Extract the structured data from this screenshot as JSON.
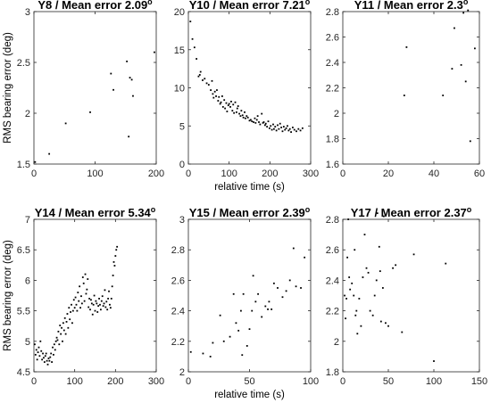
{
  "figure": {
    "ylabel": "RMS bearing error (deg)",
    "xlabel": "relative time (s)"
  },
  "chart_data": [
    {
      "type": "scatter",
      "title": "Y8 / Mean error 2.09",
      "title_suffix": "o",
      "xlabel": "",
      "ylabel": "RMS bearing error (deg)",
      "xlim": [
        0,
        200
      ],
      "ylim": [
        1.5,
        3
      ],
      "xticks": [
        0,
        100,
        200
      ],
      "yticks": [
        1.5,
        2,
        2.5,
        3
      ],
      "grid": false,
      "points": [
        [
          2,
          1.52
        ],
        [
          25,
          1.6
        ],
        [
          52,
          1.9
        ],
        [
          92,
          2.01
        ],
        [
          126,
          2.39
        ],
        [
          130,
          2.23
        ],
        [
          152,
          2.51
        ],
        [
          155,
          1.77
        ],
        [
          157,
          2.35
        ],
        [
          160,
          2.33
        ],
        [
          162,
          2.17
        ],
        [
          197,
          2.6
        ]
      ]
    },
    {
      "type": "scatter",
      "title": "Y10 / Mean error 7.21",
      "title_suffix": "o",
      "xlabel": "relative time (s)",
      "ylabel": "",
      "xlim": [
        0,
        300
      ],
      "ylim": [
        0,
        20
      ],
      "xticks": [
        0,
        100,
        200,
        300
      ],
      "yticks": [
        0,
        5,
        10,
        15,
        20
      ],
      "grid": false,
      "points": [
        [
          5,
          18.7
        ],
        [
          10,
          16.4
        ],
        [
          15,
          15.3
        ],
        [
          20,
          13.8
        ],
        [
          25,
          11.5
        ],
        [
          28,
          11.7
        ],
        [
          30,
          12.1
        ],
        [
          35,
          11
        ],
        [
          40,
          11.2
        ],
        [
          45,
          10.6
        ],
        [
          50,
          10.4
        ],
        [
          55,
          9.7
        ],
        [
          58,
          10.9
        ],
        [
          60,
          9.2
        ],
        [
          62,
          8.7
        ],
        [
          65,
          9.5
        ],
        [
          68,
          8.9
        ],
        [
          70,
          9.7
        ],
        [
          73,
          8.3
        ],
        [
          75,
          8.8
        ],
        [
          78,
          7.9
        ],
        [
          80,
          8.1
        ],
        [
          83,
          8.9
        ],
        [
          85,
          7.5
        ],
        [
          88,
          8.4
        ],
        [
          90,
          7.3
        ],
        [
          93,
          8
        ],
        [
          95,
          6.9
        ],
        [
          98,
          7.7
        ],
        [
          100,
          7.9
        ],
        [
          103,
          7.5
        ],
        [
          105,
          8.2
        ],
        [
          108,
          7
        ],
        [
          110,
          7.8
        ],
        [
          112,
          6.7
        ],
        [
          115,
          8.1
        ],
        [
          118,
          6.8
        ],
        [
          120,
          7.3
        ],
        [
          122,
          7.6
        ],
        [
          125,
          6.6
        ],
        [
          128,
          6.3
        ],
        [
          130,
          7
        ],
        [
          133,
          6.4
        ],
        [
          135,
          6.1
        ],
        [
          138,
          6.8
        ],
        [
          140,
          6
        ],
        [
          143,
          6.3
        ],
        [
          146,
          6.1
        ],
        [
          150,
          5.7
        ],
        [
          153,
          5.8
        ],
        [
          156,
          5.6
        ],
        [
          160,
          5.5
        ],
        [
          163,
          6
        ],
        [
          165,
          5.4
        ],
        [
          168,
          5.8
        ],
        [
          170,
          6.3
        ],
        [
          173,
          5.5
        ],
        [
          176,
          5.2
        ],
        [
          180,
          6.6
        ],
        [
          183,
          5.4
        ],
        [
          185,
          5.5
        ],
        [
          188,
          5.1
        ],
        [
          190,
          5.3
        ],
        [
          193,
          4.9
        ],
        [
          196,
          5.6
        ],
        [
          199,
          4.7
        ],
        [
          202,
          5
        ],
        [
          205,
          4.5
        ],
        [
          208,
          5.2
        ],
        [
          210,
          4.6
        ],
        [
          213,
          4.9
        ],
        [
          216,
          4.4
        ],
        [
          219,
          5.1
        ],
        [
          222,
          4.6
        ],
        [
          225,
          5.3
        ],
        [
          228,
          4.8
        ],
        [
          231,
          4.3
        ],
        [
          234,
          4.9
        ],
        [
          237,
          4.5
        ],
        [
          240,
          4.7
        ],
        [
          243,
          5
        ],
        [
          246,
          4.4
        ],
        [
          249,
          4.6
        ],
        [
          252,
          4.2
        ],
        [
          256,
          4.8
        ],
        [
          260,
          4.5
        ],
        [
          265,
          4.3
        ],
        [
          270,
          4.6
        ],
        [
          275,
          4.4
        ],
        [
          280,
          4.7
        ]
      ]
    },
    {
      "type": "scatter",
      "title": "Y11 / Mean error 2.3",
      "title_suffix": "o",
      "xlabel": "",
      "ylabel": "",
      "xlim": [
        0,
        60
      ],
      "ylim": [
        1.6,
        2.8
      ],
      "xticks": [
        0,
        20,
        40,
        60
      ],
      "yticks": [
        1.6,
        1.8,
        2,
        2.2,
        2.4,
        2.6,
        2.8
      ],
      "grid": false,
      "points": [
        [
          27,
          2.14
        ],
        [
          28,
          2.52
        ],
        [
          44,
          2.14
        ],
        [
          48,
          2.35
        ],
        [
          49,
          2.67
        ],
        [
          52,
          2.38
        ],
        [
          53,
          2.79
        ],
        [
          54,
          2.25
        ],
        [
          55,
          2.81
        ],
        [
          56,
          1.78
        ],
        [
          58,
          2.51
        ]
      ]
    },
    {
      "type": "scatter",
      "title": "Y14 / Mean error 5.34",
      "title_suffix": "o",
      "xlabel": "",
      "ylabel": "RMS bearing error (deg)",
      "xlim": [
        0,
        300
      ],
      "ylim": [
        4.5,
        7
      ],
      "xticks": [
        0,
        100,
        200,
        300
      ],
      "yticks": [
        4.5,
        5,
        5.5,
        6,
        6.5,
        7
      ],
      "grid": false,
      "points": [
        [
          2,
          4.95
        ],
        [
          4,
          4.78
        ],
        [
          6,
          4.86
        ],
        [
          8,
          4.7
        ],
        [
          10,
          4.82
        ],
        [
          12,
          4.9
        ],
        [
          14,
          4.76
        ],
        [
          16,
          5
        ],
        [
          18,
          4.84
        ],
        [
          20,
          4.7
        ],
        [
          22,
          4.8
        ],
        [
          24,
          4.73
        ],
        [
          26,
          4.66
        ],
        [
          28,
          4.76
        ],
        [
          30,
          4.8
        ],
        [
          32,
          4.68
        ],
        [
          34,
          4.62
        ],
        [
          36,
          4.72
        ],
        [
          38,
          4.68
        ],
        [
          40,
          4.74
        ],
        [
          42,
          4.8
        ],
        [
          44,
          4.66
        ],
        [
          46,
          4.9
        ],
        [
          48,
          4.78
        ],
        [
          50,
          4.95
        ],
        [
          52,
          4.86
        ],
        [
          54,
          5
        ],
        [
          56,
          5.06
        ],
        [
          58,
          5.02
        ],
        [
          60,
          5.16
        ],
        [
          62,
          4.95
        ],
        [
          64,
          5.26
        ],
        [
          66,
          5.12
        ],
        [
          68,
          5.22
        ],
        [
          70,
          5
        ],
        [
          72,
          5.3
        ],
        [
          74,
          5.18
        ],
        [
          76,
          5.38
        ],
        [
          78,
          5.12
        ],
        [
          80,
          5.32
        ],
        [
          82,
          5.45
        ],
        [
          84,
          5.22
        ],
        [
          86,
          5.55
        ],
        [
          88,
          5.36
        ],
        [
          90,
          5.48
        ],
        [
          92,
          5.6
        ],
        [
          94,
          5.3
        ],
        [
          96,
          5.5
        ],
        [
          98,
          5.68
        ],
        [
          100,
          5.55
        ],
        [
          102,
          5.72
        ],
        [
          104,
          5.6
        ],
        [
          106,
          5.5
        ],
        [
          108,
          5.8
        ],
        [
          110,
          5.66
        ],
        [
          112,
          5.9
        ],
        [
          114,
          5.55
        ],
        [
          116,
          5.74
        ],
        [
          118,
          5.62
        ],
        [
          120,
          6.05
        ],
        [
          122,
          5.95
        ],
        [
          124,
          5.66
        ],
        [
          126,
          6.1
        ],
        [
          128,
          5.78
        ],
        [
          130,
          5.85
        ],
        [
          132,
          6.02
        ],
        [
          134,
          5.56
        ],
        [
          136,
          5.7
        ],
        [
          138,
          5.52
        ],
        [
          140,
          5.68
        ],
        [
          142,
          5.62
        ],
        [
          144,
          5.44
        ],
        [
          146,
          5.6
        ],
        [
          148,
          5.75
        ],
        [
          150,
          5.5
        ],
        [
          152,
          5.66
        ],
        [
          154,
          5.62
        ],
        [
          156,
          5.48
        ],
        [
          158,
          5.58
        ],
        [
          160,
          5.7
        ],
        [
          162,
          5.6
        ],
        [
          164,
          5.52
        ],
        [
          166,
          5.66
        ],
        [
          168,
          5.74
        ],
        [
          170,
          5.58
        ],
        [
          172,
          5.62
        ],
        [
          174,
          5.84
        ],
        [
          176,
          5.56
        ],
        [
          178,
          5.65
        ],
        [
          180,
          5.52
        ],
        [
          182,
          5.7
        ],
        [
          184,
          5.82
        ],
        [
          186,
          5.6
        ],
        [
          188,
          5.55
        ],
        [
          190,
          5.7
        ],
        [
          192,
          5.9
        ],
        [
          194,
          6.08
        ],
        [
          196,
          6.3
        ],
        [
          198,
          6.24
        ],
        [
          200,
          6.4
        ],
        [
          202,
          6.5
        ],
        [
          204,
          6.55
        ]
      ]
    },
    {
      "type": "scatter",
      "title": "Y15 / Mean error 2.39",
      "title_suffix": "o",
      "xlabel": "relative time (s)",
      "ylabel": "",
      "xlim": [
        0,
        100
      ],
      "ylim": [
        2,
        3
      ],
      "xticks": [
        0,
        50,
        100
      ],
      "yticks": [
        2,
        2.2,
        2.4,
        2.6,
        2.8,
        3
      ],
      "grid": false,
      "points": [
        [
          2,
          2.13
        ],
        [
          12,
          2.12
        ],
        [
          18,
          2.1
        ],
        [
          20,
          2.19
        ],
        [
          26,
          2.37
        ],
        [
          29,
          2.2
        ],
        [
          34,
          2.23
        ],
        [
          37,
          2.51
        ],
        [
          39,
          2.32
        ],
        [
          41,
          2.27
        ],
        [
          43,
          2.4
        ],
        [
          44,
          2.11
        ],
        [
          45,
          2.51
        ],
        [
          48,
          2.17
        ],
        [
          50,
          2.28
        ],
        [
          52,
          2.4
        ],
        [
          53,
          2.63
        ],
        [
          55,
          2.46
        ],
        [
          57,
          2.51
        ],
        [
          60,
          2.36
        ],
        [
          63,
          2.43
        ],
        [
          65,
          2.41
        ],
        [
          66,
          2.46
        ],
        [
          68,
          2.41
        ],
        [
          70,
          2.58
        ],
        [
          73,
          2.55
        ],
        [
          77,
          2.49
        ],
        [
          80,
          2.53
        ],
        [
          83,
          2.6
        ],
        [
          86,
          2.81
        ],
        [
          88,
          2.56
        ],
        [
          92,
          2.55
        ],
        [
          95,
          2.75
        ]
      ]
    },
    {
      "type": "scatter",
      "title": "Y17 / Mean error 2.37",
      "title_suffix": "o",
      "xlabel": "",
      "ylabel": "",
      "xlim": [
        0,
        150
      ],
      "ylim": [
        1.8,
        2.8
      ],
      "xticks": [
        0,
        50,
        100,
        150
      ],
      "yticks": [
        1.8,
        2,
        2.2,
        2.4,
        2.6,
        2.8
      ],
      "grid": false,
      "points": [
        [
          2,
          2.3
        ],
        [
          3,
          2.15
        ],
        [
          4,
          2.28
        ],
        [
          5,
          2.55
        ],
        [
          6,
          2.8
        ],
        [
          7,
          2.42
        ],
        [
          8,
          2.34
        ],
        [
          10,
          2.38
        ],
        [
          12,
          2.3
        ],
        [
          13,
          2.6
        ],
        [
          14,
          2.17
        ],
        [
          15,
          2.2
        ],
        [
          16,
          2.05
        ],
        [
          18,
          2.28
        ],
        [
          20,
          2.1
        ],
        [
          22,
          2.42
        ],
        [
          24,
          2.7
        ],
        [
          26,
          2.48
        ],
        [
          28,
          2.45
        ],
        [
          30,
          2.2
        ],
        [
          33,
          2.17
        ],
        [
          35,
          2.3
        ],
        [
          37,
          2.4
        ],
        [
          38,
          2.84
        ],
        [
          40,
          2.62
        ],
        [
          41,
          2.46
        ],
        [
          42,
          2.13
        ],
        [
          44,
          2.35
        ],
        [
          45,
          2.82
        ],
        [
          47,
          2.12
        ],
        [
          50,
          2.1
        ],
        [
          55,
          2.48
        ],
        [
          58,
          2.5
        ],
        [
          65,
          2.06
        ],
        [
          78,
          2.57
        ],
        [
          100,
          1.87
        ],
        [
          113,
          2.51
        ]
      ]
    }
  ]
}
